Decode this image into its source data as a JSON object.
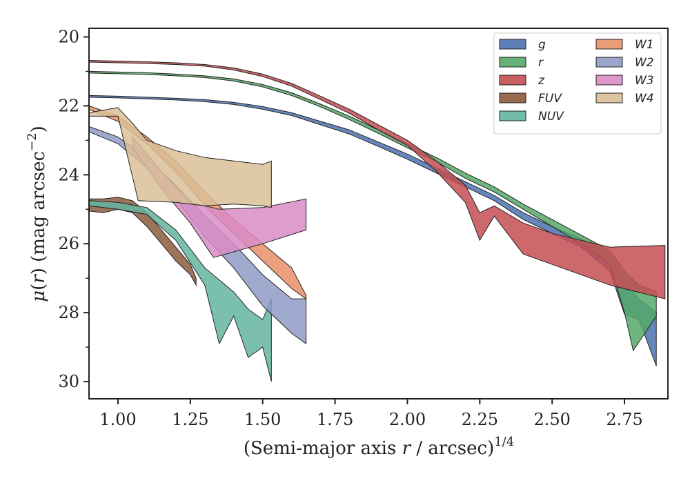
{
  "chart_data": {
    "type": "area",
    "xlabel": "(Semi-major axis r / arcsec)^{1/4}",
    "ylabel": "μ(r) (mag arcsec^{-2})",
    "xlim": [
      0.9,
      2.9
    ],
    "ylim": [
      30.5,
      19.75
    ],
    "y_inverted": true,
    "x_ticks": [
      "1.00",
      "1.25",
      "1.50",
      "1.75",
      "2.00",
      "2.25",
      "2.50",
      "2.75"
    ],
    "y_ticks": [
      "20",
      "22",
      "24",
      "26",
      "28",
      "30"
    ],
    "legend": {
      "placement": "top-right",
      "columns": 2
    },
    "series": [
      {
        "name": "g",
        "color": "#4c72b0",
        "upper": [
          [
            0.9,
            21.7
          ],
          [
            1.0,
            21.72
          ],
          [
            1.1,
            21.75
          ],
          [
            1.2,
            21.78
          ],
          [
            1.3,
            21.82
          ],
          [
            1.4,
            21.9
          ],
          [
            1.5,
            22.02
          ],
          [
            1.6,
            22.2
          ],
          [
            1.7,
            22.45
          ],
          [
            1.8,
            22.7
          ],
          [
            1.9,
            23.05
          ],
          [
            2.0,
            23.4
          ],
          [
            2.1,
            23.8
          ],
          [
            2.2,
            24.2
          ],
          [
            2.3,
            24.6
          ],
          [
            2.4,
            25.1
          ],
          [
            2.5,
            25.5
          ],
          [
            2.6,
            25.85
          ],
          [
            2.7,
            26.3
          ],
          [
            2.75,
            27.1
          ],
          [
            2.8,
            27.6
          ],
          [
            2.86,
            28.0
          ]
        ],
        "lower": [
          [
            0.9,
            21.75
          ],
          [
            1.0,
            21.77
          ],
          [
            1.1,
            21.8
          ],
          [
            1.2,
            21.83
          ],
          [
            1.3,
            21.88
          ],
          [
            1.4,
            21.96
          ],
          [
            1.5,
            22.1
          ],
          [
            1.6,
            22.28
          ],
          [
            1.7,
            22.55
          ],
          [
            1.8,
            22.82
          ],
          [
            1.9,
            23.18
          ],
          [
            2.0,
            23.55
          ],
          [
            2.1,
            23.95
          ],
          [
            2.2,
            24.35
          ],
          [
            2.3,
            24.75
          ],
          [
            2.4,
            25.3
          ],
          [
            2.5,
            25.7
          ],
          [
            2.6,
            26.1
          ],
          [
            2.7,
            26.8
          ],
          [
            2.75,
            28.05
          ],
          [
            2.8,
            28.2
          ],
          [
            2.86,
            29.55
          ]
        ]
      },
      {
        "name": "r",
        "color": "#55a868",
        "upper": [
          [
            0.9,
            21.0
          ],
          [
            1.0,
            21.02
          ],
          [
            1.1,
            21.04
          ],
          [
            1.2,
            21.08
          ],
          [
            1.3,
            21.13
          ],
          [
            1.4,
            21.22
          ],
          [
            1.5,
            21.38
          ],
          [
            1.6,
            21.62
          ],
          [
            1.7,
            21.95
          ],
          [
            1.8,
            22.3
          ],
          [
            1.9,
            22.7
          ],
          [
            2.0,
            23.1
          ],
          [
            2.1,
            23.5
          ],
          [
            2.2,
            23.95
          ],
          [
            2.3,
            24.35
          ],
          [
            2.4,
            24.85
          ],
          [
            2.5,
            25.3
          ],
          [
            2.6,
            25.75
          ],
          [
            2.7,
            26.2
          ],
          [
            2.75,
            26.8
          ],
          [
            2.8,
            27.2
          ],
          [
            2.86,
            27.4
          ]
        ],
        "lower": [
          [
            0.9,
            21.05
          ],
          [
            1.0,
            21.07
          ],
          [
            1.1,
            21.09
          ],
          [
            1.2,
            21.13
          ],
          [
            1.3,
            21.18
          ],
          [
            1.4,
            21.28
          ],
          [
            1.5,
            21.45
          ],
          [
            1.6,
            21.7
          ],
          [
            1.7,
            22.03
          ],
          [
            1.8,
            22.4
          ],
          [
            1.9,
            22.8
          ],
          [
            2.0,
            23.22
          ],
          [
            2.1,
            23.62
          ],
          [
            2.2,
            24.1
          ],
          [
            2.3,
            24.5
          ],
          [
            2.4,
            25.0
          ],
          [
            2.5,
            25.5
          ],
          [
            2.6,
            26.0
          ],
          [
            2.7,
            26.6
          ],
          [
            2.75,
            28.0
          ],
          [
            2.78,
            29.1
          ],
          [
            2.86,
            28.1
          ]
        ]
      },
      {
        "name": "z",
        "color": "#c44e52",
        "upper": [
          [
            0.9,
            20.68
          ],
          [
            1.0,
            20.7
          ],
          [
            1.1,
            20.72
          ],
          [
            1.2,
            20.75
          ],
          [
            1.3,
            20.8
          ],
          [
            1.4,
            20.9
          ],
          [
            1.5,
            21.08
          ],
          [
            1.6,
            21.35
          ],
          [
            1.7,
            21.72
          ],
          [
            1.8,
            22.1
          ],
          [
            1.9,
            22.55
          ],
          [
            2.0,
            23.0
          ],
          [
            2.1,
            23.6
          ],
          [
            2.2,
            24.3
          ],
          [
            2.25,
            25.1
          ],
          [
            2.3,
            24.9
          ],
          [
            2.4,
            25.4
          ],
          [
            2.5,
            25.7
          ],
          [
            2.6,
            25.9
          ],
          [
            2.7,
            26.1
          ],
          [
            2.89,
            26.05
          ]
        ],
        "lower": [
          [
            0.9,
            20.73
          ],
          [
            1.0,
            20.75
          ],
          [
            1.1,
            20.77
          ],
          [
            1.2,
            20.8
          ],
          [
            1.3,
            20.85
          ],
          [
            1.4,
            20.96
          ],
          [
            1.5,
            21.15
          ],
          [
            1.6,
            21.43
          ],
          [
            1.7,
            21.82
          ],
          [
            1.8,
            22.22
          ],
          [
            1.9,
            22.7
          ],
          [
            2.0,
            23.15
          ],
          [
            2.1,
            23.9
          ],
          [
            2.2,
            24.8
          ],
          [
            2.25,
            25.9
          ],
          [
            2.3,
            25.2
          ],
          [
            2.4,
            26.3
          ],
          [
            2.5,
            26.6
          ],
          [
            2.6,
            26.9
          ],
          [
            2.7,
            27.2
          ],
          [
            2.89,
            27.6
          ]
        ]
      },
      {
        "name": "FUV",
        "color": "#8c5a3c",
        "upper": [
          [
            0.9,
            24.7
          ],
          [
            0.95,
            24.7
          ],
          [
            1.0,
            24.65
          ],
          [
            1.05,
            24.75
          ],
          [
            1.1,
            25.1
          ],
          [
            1.15,
            25.6
          ],
          [
            1.2,
            26.1
          ],
          [
            1.25,
            26.6
          ],
          [
            1.27,
            27.0
          ]
        ],
        "lower": [
          [
            0.9,
            25.05
          ],
          [
            0.95,
            25.1
          ],
          [
            1.0,
            25.0
          ],
          [
            1.05,
            25.1
          ],
          [
            1.1,
            25.5
          ],
          [
            1.15,
            26.0
          ],
          [
            1.2,
            26.5
          ],
          [
            1.25,
            26.9
          ],
          [
            1.27,
            27.2
          ]
        ]
      },
      {
        "name": "NUV",
        "color": "#64b5a0",
        "upper": [
          [
            0.9,
            24.75
          ],
          [
            1.0,
            24.8
          ],
          [
            1.1,
            24.95
          ],
          [
            1.2,
            25.6
          ],
          [
            1.3,
            26.7
          ],
          [
            1.4,
            27.4
          ],
          [
            1.45,
            27.9
          ],
          [
            1.5,
            28.2
          ],
          [
            1.53,
            27.6
          ]
        ],
        "lower": [
          [
            0.9,
            24.9
          ],
          [
            1.0,
            25.0
          ],
          [
            1.1,
            25.15
          ],
          [
            1.2,
            25.9
          ],
          [
            1.3,
            27.2
          ],
          [
            1.35,
            28.9
          ],
          [
            1.4,
            28.1
          ],
          [
            1.45,
            29.3
          ],
          [
            1.5,
            29.0
          ],
          [
            1.53,
            30.0
          ]
        ]
      },
      {
        "name": "W1",
        "color": "#e8916a",
        "upper": [
          [
            0.9,
            22.0
          ],
          [
            1.0,
            22.3
          ],
          [
            1.1,
            22.9
          ],
          [
            1.2,
            23.6
          ],
          [
            1.3,
            24.5
          ],
          [
            1.4,
            25.3
          ],
          [
            1.5,
            26.0
          ],
          [
            1.6,
            26.7
          ],
          [
            1.65,
            27.5
          ]
        ],
        "lower": [
          [
            0.9,
            22.1
          ],
          [
            1.0,
            22.45
          ],
          [
            1.1,
            23.1
          ],
          [
            1.2,
            23.9
          ],
          [
            1.3,
            24.9
          ],
          [
            1.4,
            25.7
          ],
          [
            1.5,
            26.5
          ],
          [
            1.6,
            27.3
          ],
          [
            1.65,
            27.6
          ]
        ]
      },
      {
        "name": "W2",
        "color": "#8f9bc7",
        "upper": [
          [
            0.9,
            22.6
          ],
          [
            1.0,
            22.9
          ],
          [
            1.1,
            23.5
          ],
          [
            1.2,
            24.3
          ],
          [
            1.3,
            25.2
          ],
          [
            1.4,
            26.0
          ],
          [
            1.5,
            26.9
          ],
          [
            1.6,
            27.6
          ],
          [
            1.65,
            27.6
          ]
        ],
        "lower": [
          [
            0.9,
            22.75
          ],
          [
            1.0,
            23.1
          ],
          [
            1.1,
            23.8
          ],
          [
            1.2,
            24.7
          ],
          [
            1.3,
            25.8
          ],
          [
            1.4,
            26.7
          ],
          [
            1.5,
            27.8
          ],
          [
            1.6,
            28.6
          ],
          [
            1.65,
            28.9
          ]
        ]
      },
      {
        "name": "W3",
        "color": "#d98cc4",
        "upper": [
          [
            1.05,
            22.9
          ],
          [
            1.15,
            23.9
          ],
          [
            1.25,
            24.8
          ],
          [
            1.35,
            25.0
          ],
          [
            1.5,
            24.95
          ],
          [
            1.65,
            24.7
          ]
        ],
        "lower": [
          [
            1.05,
            23.2
          ],
          [
            1.15,
            24.4
          ],
          [
            1.25,
            25.4
          ],
          [
            1.33,
            26.4
          ],
          [
            1.5,
            26.0
          ],
          [
            1.65,
            25.6
          ]
        ]
      },
      {
        "name": "W4",
        "color": "#d9bf96",
        "upper": [
          [
            0.9,
            22.2
          ],
          [
            1.0,
            22.05
          ],
          [
            1.05,
            22.5
          ],
          [
            1.1,
            23.0
          ],
          [
            1.2,
            23.3
          ],
          [
            1.3,
            23.5
          ],
          [
            1.4,
            23.6
          ],
          [
            1.5,
            23.7
          ],
          [
            1.53,
            23.6
          ]
        ],
        "lower": [
          [
            0.9,
            22.3
          ],
          [
            1.0,
            22.3
          ],
          [
            1.07,
            24.75
          ],
          [
            1.2,
            24.8
          ],
          [
            1.3,
            24.9
          ],
          [
            1.4,
            24.85
          ],
          [
            1.5,
            24.9
          ],
          [
            1.53,
            24.95
          ]
        ]
      }
    ]
  }
}
